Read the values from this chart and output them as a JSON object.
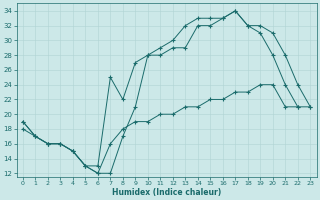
{
  "xlabel": "Humidex (Indice chaleur)",
  "bg_color": "#cce8e8",
  "line_color": "#1a6b6b",
  "grid_color": "#b0d4d4",
  "xlim": [
    -0.5,
    23.5
  ],
  "ylim": [
    11.5,
    35.0
  ],
  "yticks": [
    12,
    14,
    16,
    18,
    20,
    22,
    24,
    26,
    28,
    30,
    32,
    34
  ],
  "xticks": [
    0,
    1,
    2,
    3,
    4,
    5,
    6,
    7,
    8,
    9,
    10,
    11,
    12,
    13,
    14,
    15,
    16,
    17,
    18,
    19,
    20,
    21,
    22,
    23
  ],
  "line1_x": [
    0,
    1,
    2,
    3,
    4,
    5,
    6,
    7,
    8,
    9,
    10,
    11,
    12,
    13,
    14,
    15,
    16,
    17,
    18,
    19,
    20,
    21,
    22
  ],
  "line1_y": [
    19,
    17,
    16,
    16,
    15,
    13,
    13,
    25,
    22,
    27,
    28,
    29,
    30,
    32,
    33,
    33,
    33,
    34,
    32,
    31,
    28,
    24,
    21
  ],
  "line2_x": [
    0,
    1,
    2,
    3,
    4,
    5,
    6,
    7,
    8,
    9,
    10,
    11,
    12,
    13,
    14,
    15,
    16,
    17,
    18,
    19,
    20,
    21,
    22,
    23
  ],
  "line2_y": [
    19,
    17,
    16,
    16,
    15,
    13,
    12,
    12,
    17,
    21,
    28,
    28,
    29,
    29,
    32,
    32,
    33,
    34,
    32,
    32,
    31,
    28,
    24,
    21
  ],
  "line3_x": [
    0,
    1,
    2,
    3,
    4,
    5,
    6,
    7,
    8,
    9,
    10,
    11,
    12,
    13,
    14,
    15,
    16,
    17,
    18,
    19,
    20,
    21,
    22,
    23
  ],
  "line3_y": [
    18,
    17,
    16,
    16,
    15,
    13,
    12,
    16,
    18,
    19,
    19,
    20,
    20,
    21,
    21,
    22,
    22,
    23,
    23,
    24,
    24,
    21,
    21,
    21
  ]
}
